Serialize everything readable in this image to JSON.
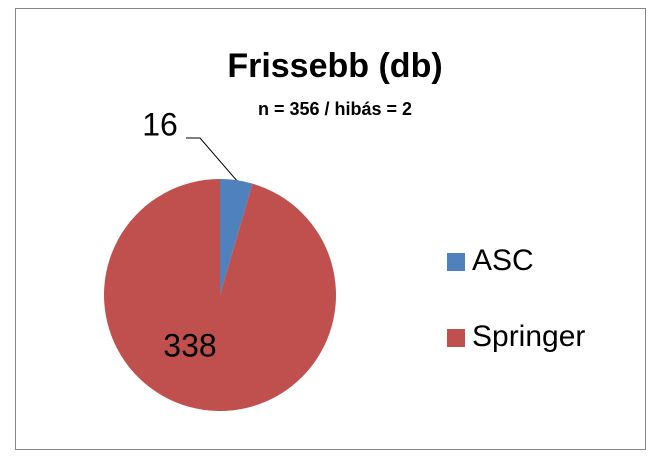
{
  "chart_data": {
    "type": "pie",
    "title": "Frissebb (db)",
    "subtitle": "n = 356 / hibás = 2",
    "categories": [
      "ASC",
      "Springer"
    ],
    "values": [
      16,
      338
    ],
    "colors": [
      "#4f81bd",
      "#c0504d"
    ],
    "legend": "right"
  }
}
